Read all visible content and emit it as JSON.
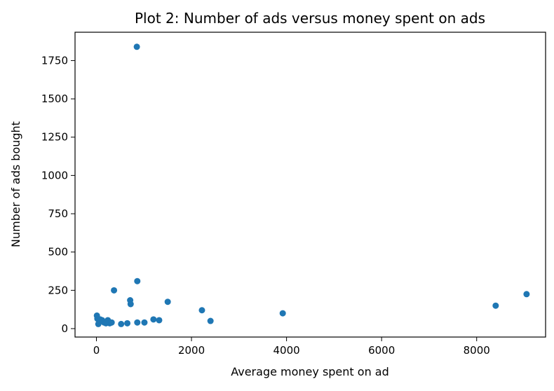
{
  "chart_data": {
    "type": "scatter",
    "title": "Plot 2: Number of ads versus money spent on ads",
    "xlabel": "Average money spent on ad",
    "ylabel": "Number of ads bought",
    "xlim": [
      -450,
      9450
    ],
    "ylim": [
      -55,
      1935
    ],
    "xticks": [
      0,
      2000,
      4000,
      6000,
      8000
    ],
    "yticks": [
      0,
      250,
      500,
      750,
      1000,
      1250,
      1500,
      1750
    ],
    "grid": false,
    "legend": "none",
    "color": "#1f77b4",
    "series": [
      {
        "points": [
          [
            850,
            1840
          ],
          [
            860,
            310
          ],
          [
            370,
            250
          ],
          [
            2220,
            120
          ],
          [
            1500,
            175
          ],
          [
            710,
            185
          ],
          [
            720,
            160
          ],
          [
            3920,
            100
          ],
          [
            8400,
            150
          ],
          [
            9050,
            225
          ],
          [
            2400,
            50
          ],
          [
            10,
            85
          ],
          [
            20,
            65
          ],
          [
            40,
            30
          ],
          [
            80,
            60
          ],
          [
            120,
            55
          ],
          [
            160,
            40
          ],
          [
            200,
            35
          ],
          [
            240,
            55
          ],
          [
            280,
            35
          ],
          [
            320,
            40
          ],
          [
            520,
            30
          ],
          [
            650,
            35
          ],
          [
            860,
            40
          ],
          [
            1010,
            40
          ],
          [
            1200,
            60
          ],
          [
            1320,
            55
          ]
        ]
      }
    ]
  }
}
